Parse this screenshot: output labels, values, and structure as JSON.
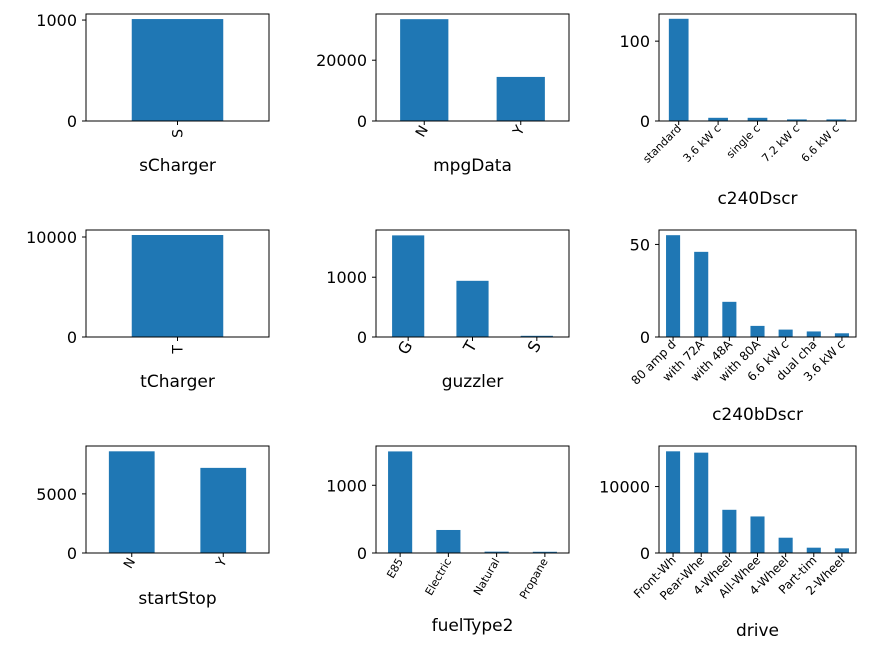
{
  "colors": {
    "bar": "#1f77b4",
    "background": "#ffffff",
    "axis": "#000000"
  },
  "chart_data": [
    {
      "type": "bar",
      "xlabel": "sCharger",
      "categories": [
        "S"
      ],
      "values": [
        1010
      ],
      "ylim": [
        0,
        1060
      ],
      "yticks": [
        0,
        1000
      ]
    },
    {
      "type": "bar",
      "xlabel": "mpgData",
      "categories": [
        "N",
        "Y"
      ],
      "values": [
        33500,
        14500
      ],
      "ylim": [
        0,
        35200
      ],
      "yticks": [
        0,
        20000
      ]
    },
    {
      "type": "bar",
      "xlabel": "c240Dscr",
      "categories": [
        "standard",
        "3.6 kW c",
        "single c",
        "7.2 kW c",
        "6.6 kW c"
      ],
      "values": [
        128,
        4,
        4,
        2,
        2
      ],
      "ylim": [
        0,
        134
      ],
      "yticks": [
        0,
        100
      ]
    },
    {
      "type": "bar",
      "xlabel": "tCharger",
      "categories": [
        "T"
      ],
      "values": [
        10200
      ],
      "ylim": [
        0,
        10700
      ],
      "yticks": [
        0,
        10000
      ]
    },
    {
      "type": "bar",
      "xlabel": "guzzler",
      "categories": [
        "G",
        "T",
        "S"
      ],
      "values": [
        1700,
        940,
        20
      ],
      "ylim": [
        0,
        1790
      ],
      "yticks": [
        0,
        1000
      ]
    },
    {
      "type": "bar",
      "xlabel": "c240bDscr",
      "categories": [
        "80 amp d",
        "with 72A",
        "with 48A",
        "with 80A",
        "6.6 kW c",
        "dual cha",
        "3.6 kW c"
      ],
      "values": [
        55,
        46,
        19,
        6,
        4,
        3,
        2
      ],
      "ylim": [
        0,
        57.8
      ],
      "yticks": [
        0,
        50
      ]
    },
    {
      "type": "bar",
      "xlabel": "startStop",
      "categories": [
        "N",
        "Y"
      ],
      "values": [
        8600,
        7200
      ],
      "ylim": [
        0,
        9050
      ],
      "yticks": [
        0,
        5000
      ]
    },
    {
      "type": "bar",
      "xlabel": "fuelType2",
      "categories": [
        "E85",
        "Electric",
        "Natural",
        "Propane"
      ],
      "values": [
        1500,
        340,
        20,
        18
      ],
      "ylim": [
        0,
        1580
      ],
      "yticks": [
        0,
        1000
      ]
    },
    {
      "type": "bar",
      "xlabel": "drive",
      "categories": [
        "Front-Wh",
        "Pear-Whe",
        "4-Wheel",
        "All-Whee",
        "4-Wheel",
        "Part-tim",
        "2-Wheel"
      ],
      "values": [
        15300,
        15100,
        6500,
        5500,
        2300,
        800,
        700
      ],
      "ylim": [
        0,
        16100
      ],
      "yticks": [
        0,
        10000
      ]
    }
  ]
}
